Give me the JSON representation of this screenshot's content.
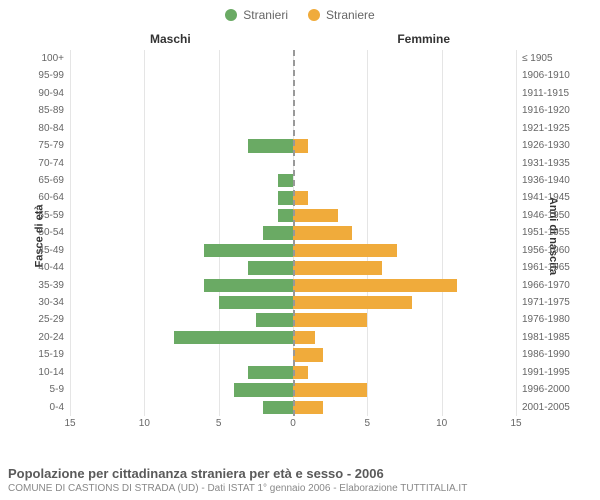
{
  "legend": {
    "male": {
      "label": "Stranieri",
      "color": "#6aaa64"
    },
    "female": {
      "label": "Straniere",
      "color": "#f0ab3b"
    }
  },
  "header": {
    "left": "Maschi",
    "right": "Femmine"
  },
  "yaxis": {
    "left_label": "Fasce di età",
    "right_label": "Anni di nascita"
  },
  "chart": {
    "type": "population-pyramid",
    "xmax": 15,
    "xticks": [
      15,
      10,
      5,
      0,
      5,
      10,
      15
    ],
    "bar_color_m": "#6aaa64",
    "bar_color_f": "#f0ab3b",
    "grid_color": "#e5e5e5",
    "center_color": "#999999",
    "rows": [
      {
        "age": "100+",
        "birth": "≤ 1905",
        "m": 0,
        "f": 0
      },
      {
        "age": "95-99",
        "birth": "1906-1910",
        "m": 0,
        "f": 0
      },
      {
        "age": "90-94",
        "birth": "1911-1915",
        "m": 0,
        "f": 0
      },
      {
        "age": "85-89",
        "birth": "1916-1920",
        "m": 0,
        "f": 0
      },
      {
        "age": "80-84",
        "birth": "1921-1925",
        "m": 0,
        "f": 0
      },
      {
        "age": "75-79",
        "birth": "1926-1930",
        "m": 3,
        "f": 1
      },
      {
        "age": "70-74",
        "birth": "1931-1935",
        "m": 0,
        "f": 0
      },
      {
        "age": "65-69",
        "birth": "1936-1940",
        "m": 1,
        "f": 0
      },
      {
        "age": "60-64",
        "birth": "1941-1945",
        "m": 1,
        "f": 1
      },
      {
        "age": "55-59",
        "birth": "1946-1950",
        "m": 1,
        "f": 3
      },
      {
        "age": "50-54",
        "birth": "1951-1955",
        "m": 2,
        "f": 4
      },
      {
        "age": "45-49",
        "birth": "1956-1960",
        "m": 6,
        "f": 7
      },
      {
        "age": "40-44",
        "birth": "1961-1965",
        "m": 3,
        "f": 6
      },
      {
        "age": "35-39",
        "birth": "1966-1970",
        "m": 6,
        "f": 11
      },
      {
        "age": "30-34",
        "birth": "1971-1975",
        "m": 5,
        "f": 8
      },
      {
        "age": "25-29",
        "birth": "1976-1980",
        "m": 2.5,
        "f": 5
      },
      {
        "age": "20-24",
        "birth": "1981-1985",
        "m": 8,
        "f": 1.5
      },
      {
        "age": "15-19",
        "birth": "1986-1990",
        "m": 0,
        "f": 2
      },
      {
        "age": "10-14",
        "birth": "1991-1995",
        "m": 3,
        "f": 1
      },
      {
        "age": "5-9",
        "birth": "1996-2000",
        "m": 4,
        "f": 5
      },
      {
        "age": "0-4",
        "birth": "2001-2005",
        "m": 2,
        "f": 2
      }
    ]
  },
  "caption": {
    "title": "Popolazione per cittadinanza straniera per età e sesso - 2006",
    "sub": "COMUNE DI CASTIONS DI STRADA (UD) - Dati ISTAT 1° gennaio 2006 - Elaborazione TUTTITALIA.IT"
  }
}
